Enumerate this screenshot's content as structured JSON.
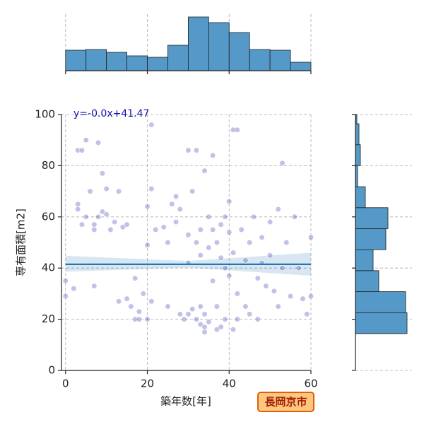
{
  "chart_data": {
    "type": "scatter",
    "x_label": "築年数[年]",
    "y_label": "専有面積[m2]",
    "badge": "長岡京市",
    "xlim": [
      -1,
      60
    ],
    "ylim": [
      0,
      100
    ],
    "xticks": [
      0,
      20,
      40,
      60
    ],
    "yticks": [
      0,
      20,
      40,
      60,
      80,
      100
    ],
    "grid": true,
    "color": "#3535b5",
    "x": [
      0,
      0,
      2,
      3,
      4,
      3,
      3,
      4,
      5,
      5,
      6,
      7,
      7,
      7,
      8,
      8,
      9,
      9,
      10,
      10,
      11,
      12,
      13,
      13,
      14,
      15,
      15,
      16,
      17,
      17,
      18,
      18,
      19,
      20,
      20,
      20,
      21,
      21,
      21,
      22,
      24,
      25,
      25,
      26,
      27,
      27,
      28,
      28,
      29,
      30,
      30,
      30,
      30,
      31,
      31,
      32,
      32,
      32,
      33,
      33,
      33,
      33,
      34,
      34,
      34,
      34,
      35,
      35,
      35,
      36,
      36,
      36,
      37,
      37,
      37,
      38,
      38,
      38,
      39,
      39,
      39,
      40,
      40,
      40,
      41,
      41,
      41,
      42,
      42,
      42,
      43,
      44,
      44,
      45,
      45,
      46,
      47,
      47,
      48,
      48,
      49,
      50,
      50,
      51,
      52,
      52,
      53,
      53,
      54,
      55,
      56,
      57,
      58,
      59,
      60,
      60
    ],
    "values": [
      29,
      35,
      32,
      86,
      86,
      63,
      65,
      57,
      60,
      90,
      70,
      57,
      55,
      33,
      89,
      60,
      62,
      77,
      71,
      61,
      55,
      58,
      70,
      27,
      56,
      57,
      28,
      25,
      36,
      20,
      20,
      23,
      30,
      49,
      64,
      20,
      96,
      71,
      27,
      55,
      56,
      25,
      50,
      65,
      58,
      68,
      22,
      63,
      20,
      22,
      42,
      53,
      86,
      24,
      70,
      86,
      50,
      20,
      18,
      25,
      45,
      55,
      78,
      15,
      22,
      17,
      60,
      48,
      19,
      84,
      55,
      35,
      16,
      25,
      50,
      17,
      57,
      44,
      20,
      60,
      40,
      54,
      66,
      37,
      94,
      46,
      16,
      20,
      30,
      94,
      55,
      43,
      25,
      50,
      22,
      60,
      36,
      20,
      52,
      42,
      33,
      58,
      45,
      31,
      63,
      25,
      81,
      40,
      50,
      29,
      60,
      40,
      28,
      22,
      52,
      29
    ],
    "regression": {
      "label": "y=-0.0x+41.47",
      "slope": -0.0,
      "intercept": 41.47,
      "color": "#1f77b4",
      "band_x": [
        0,
        30,
        60
      ],
      "band_lower": [
        38.6,
        40.2,
        37
      ],
      "band_upper": [
        44.8,
        42.8,
        46
      ]
    },
    "x_hist": {
      "bins": [
        0,
        5,
        10,
        15,
        20,
        25,
        30,
        35,
        40,
        45,
        50,
        55,
        60
      ],
      "counts": [
        29,
        30,
        26,
        21,
        19,
        36,
        76,
        68,
        54,
        30,
        29,
        12
      ],
      "ylim": [
        0,
        80
      ],
      "color": "#5499c7"
    },
    "y_hist": {
      "bins": [
        14.4,
        22.6,
        30.8,
        39,
        47.2,
        55.4,
        63.6,
        71.8,
        80,
        88.2,
        96.4,
        104.6
      ],
      "counts": [
        73,
        71,
        33,
        25,
        43,
        46,
        14,
        3,
        7,
        5,
        2
      ],
      "xlim": [
        0,
        80
      ],
      "color": "#5499c7"
    }
  }
}
